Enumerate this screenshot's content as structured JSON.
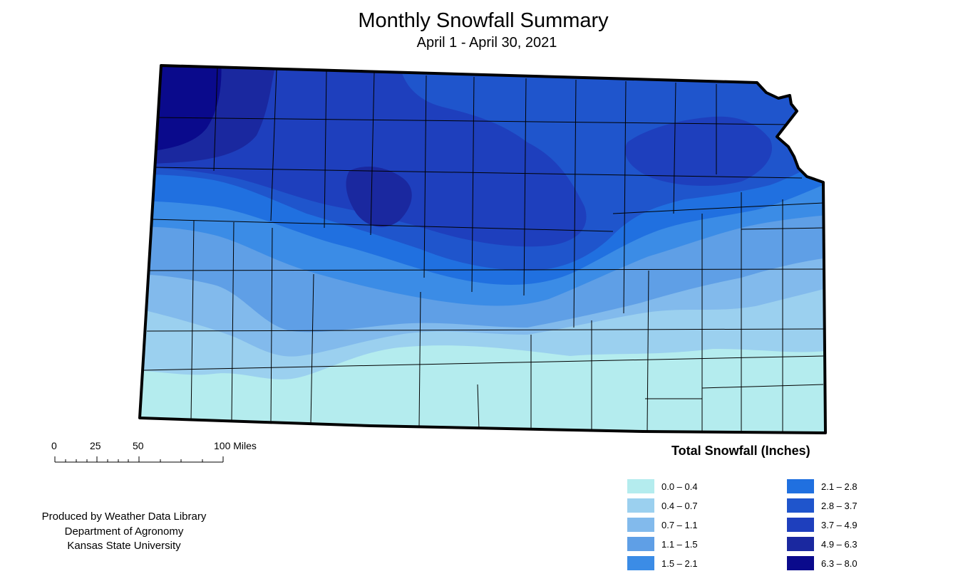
{
  "header": {
    "title": "Monthly Snowfall Summary",
    "subtitle": "April 1 - April 30, 2021"
  },
  "scale_bar": {
    "ticks": [
      "0",
      "25",
      "50",
      "100 Miles"
    ]
  },
  "credits": {
    "line1": "Produced by Weather Data Library",
    "line2": "Department of Agronomy",
    "line3": "Kansas State University"
  },
  "legend": {
    "title": "Total Snowfall (Inches)",
    "items": [
      {
        "label": "0.0 – 0.4",
        "color": "#b4ecee"
      },
      {
        "label": "0.4 – 0.7",
        "color": "#9bd0ef"
      },
      {
        "label": "0.7 – 1.1",
        "color": "#82baec"
      },
      {
        "label": "1.1 – 1.5",
        "color": "#5f9fe6"
      },
      {
        "label": "1.5 – 2.1",
        "color": "#3b8ce6"
      },
      {
        "label": "2.1 – 2.8",
        "color": "#2070e0"
      },
      {
        "label": "2.8 – 3.7",
        "color": "#1f55cc"
      },
      {
        "label": "3.7 – 4.9",
        "color": "#1e3fbd"
      },
      {
        "label": "4.9 – 6.3",
        "color": "#1a289f"
      },
      {
        "label": "6.3 – 8.0",
        "color": "#0a0a8c"
      }
    ]
  }
}
